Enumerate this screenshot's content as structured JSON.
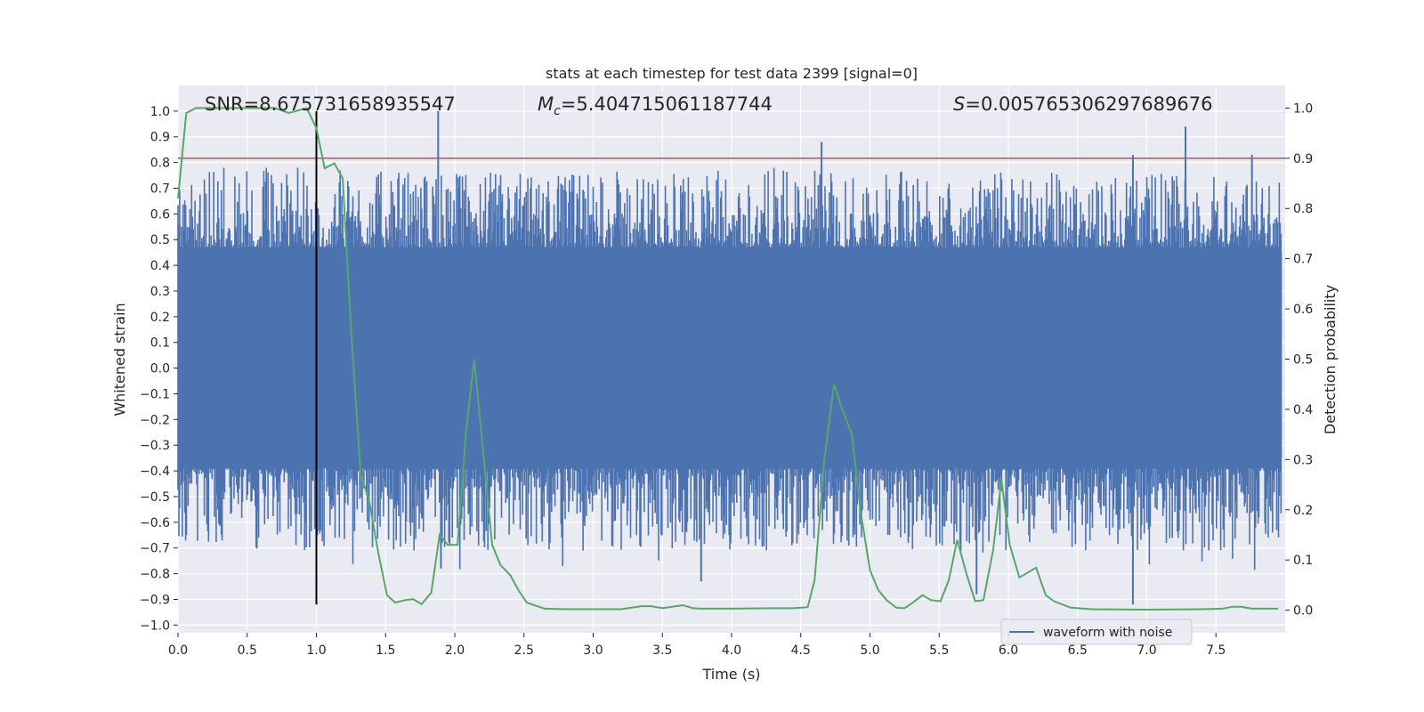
{
  "chart_data": {
    "type": "line",
    "title": "stats at each timestep for test data 2399 [signal=0]",
    "xlabel": "Time (s)",
    "ylabel_left": "Whitened strain",
    "ylabel_right": "Detection probability",
    "xlim": [
      0.0,
      8.0
    ],
    "ylim_left": [
      -1.03,
      1.1
    ],
    "ylim_right": [
      -0.045,
      1.045
    ],
    "x_ticks": [
      "0.0",
      "0.5",
      "1.0",
      "1.5",
      "2.0",
      "2.5",
      "3.0",
      "3.5",
      "4.0",
      "4.5",
      "5.0",
      "5.5",
      "6.0",
      "6.5",
      "7.0",
      "7.5"
    ],
    "y_ticks_left": [
      "-1.0",
      "-0.9",
      "-0.8",
      "-0.7",
      "-0.6",
      "-0.5",
      "-0.4",
      "-0.3",
      "-0.2",
      "-0.1",
      "0.0",
      "0.1",
      "0.2",
      "0.3",
      "0.4",
      "0.5",
      "0.6",
      "0.7",
      "0.8",
      "0.9",
      "1.0"
    ],
    "y_ticks_right": [
      "0.0",
      "0.1",
      "0.2",
      "0.3",
      "0.4",
      "0.5",
      "0.6",
      "0.7",
      "0.8",
      "0.9",
      "1.0"
    ],
    "grid": true,
    "legend": {
      "position": "lower-right",
      "entries": [
        {
          "label": "waveform with noise",
          "color": "#4c72b0"
        }
      ]
    },
    "annotations": {
      "snr": "SNR=8.675731658935547",
      "mc_symbol": "M",
      "mc_sub": "c",
      "mc_value": "=5.404715061187744",
      "s_symbol": "S",
      "s_value": "=0.005765306297689676"
    },
    "threshold_line": {
      "axis": "right",
      "y": 0.9,
      "color": "#c44e52"
    },
    "marker_line": {
      "x": 1.0,
      "y_range_left": [
        -0.92,
        1.0
      ],
      "color": "#000000"
    },
    "waveform": {
      "name": "waveform with noise",
      "color": "#4c72b0",
      "core_band": [
        -0.35,
        0.45
      ],
      "envelope_range": [
        -0.92,
        1.0
      ],
      "peaks_positive": [
        {
          "x": 1.88,
          "y": 1.0
        },
        {
          "x": 4.65,
          "y": 0.88
        },
        {
          "x": 6.9,
          "y": 0.83
        },
        {
          "x": 7.28,
          "y": 0.94
        },
        {
          "x": 7.76,
          "y": 0.83
        }
      ],
      "peaks_negative": [
        {
          "x": 6.9,
          "y": -0.92
        },
        {
          "x": 5.77,
          "y": -0.88
        },
        {
          "x": 3.78,
          "y": -0.83
        },
        {
          "x": 1.9,
          "y": -0.78
        }
      ]
    },
    "series": [
      {
        "name": "detection probability",
        "axis": "right",
        "color": "#55a868",
        "x": [
          0.0,
          0.06,
          0.13,
          0.25,
          0.5,
          0.7,
          0.8,
          0.93,
          1.0,
          1.06,
          1.13,
          1.19,
          1.25,
          1.32,
          1.38,
          1.45,
          1.51,
          1.57,
          1.64,
          1.7,
          1.76,
          1.83,
          1.89,
          1.95,
          2.02,
          2.08,
          2.14,
          2.21,
          2.27,
          2.33,
          2.4,
          2.46,
          2.52,
          2.65,
          2.8,
          3.0,
          3.2,
          3.35,
          3.42,
          3.5,
          3.65,
          3.72,
          3.78,
          4.0,
          4.3,
          4.45,
          4.55,
          4.6,
          4.67,
          4.74,
          4.8,
          4.87,
          4.93,
          5.0,
          5.06,
          5.12,
          5.19,
          5.25,
          5.31,
          5.38,
          5.44,
          5.51,
          5.57,
          5.63,
          5.7,
          5.76,
          5.82,
          5.89,
          5.95,
          6.01,
          6.08,
          6.14,
          6.2,
          6.27,
          6.33,
          6.45,
          6.6,
          7.0,
          7.4,
          7.55,
          7.62,
          7.68,
          7.76,
          7.95
        ],
        "y": [
          0.82,
          0.99,
          1.0,
          1.0,
          1.0,
          1.0,
          0.99,
          1.0,
          0.96,
          0.88,
          0.89,
          0.86,
          0.56,
          0.27,
          0.22,
          0.11,
          0.03,
          0.015,
          0.02,
          0.022,
          0.012,
          0.035,
          0.15,
          0.13,
          0.13,
          0.35,
          0.5,
          0.3,
          0.13,
          0.09,
          0.07,
          0.04,
          0.015,
          0.003,
          0.002,
          0.002,
          0.002,
          0.008,
          0.008,
          0.004,
          0.01,
          0.004,
          0.003,
          0.003,
          0.004,
          0.004,
          0.006,
          0.06,
          0.3,
          0.45,
          0.4,
          0.35,
          0.2,
          0.08,
          0.04,
          0.02,
          0.005,
          0.004,
          0.015,
          0.03,
          0.02,
          0.018,
          0.06,
          0.14,
          0.07,
          0.018,
          0.02,
          0.12,
          0.26,
          0.13,
          0.065,
          0.075,
          0.085,
          0.03,
          0.018,
          0.005,
          0.002,
          0.001,
          0.002,
          0.003,
          0.007,
          0.007,
          0.003,
          0.003
        ]
      }
    ]
  }
}
